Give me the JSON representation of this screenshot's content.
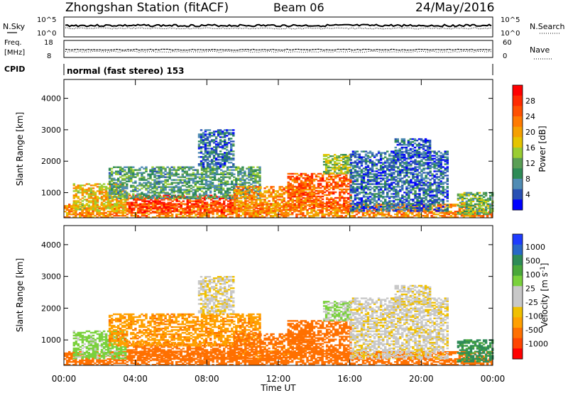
{
  "header": {
    "station": "Zhongshan Station (fitACF)",
    "beam": "Beam 06",
    "date": "24/May/2016"
  },
  "summary_panels": {
    "nsky": {
      "label": "N.Sky",
      "ticks": [
        "10^5",
        "10^0"
      ]
    },
    "nsearch": {
      "label": "N.Search",
      "ticks": [
        "10^5",
        "10^0"
      ]
    },
    "freq": {
      "label_top": "Freq.",
      "label_bottom": "[MHz]",
      "ticks": [
        "18",
        "8"
      ]
    },
    "nave": {
      "label": "Nave",
      "ticks": [
        "60",
        "0"
      ]
    },
    "cpid": {
      "label": "CPID",
      "value": "normal (fast stereo) 153"
    }
  },
  "chart_data": [
    {
      "type": "heatmap",
      "title": "",
      "xlabel": "Time UT",
      "ylabel": "Slant Range [km]",
      "x_tick_labels": [
        "00:00",
        "04:00",
        "08:00",
        "12:00",
        "16:00",
        "20:00",
        "00:00"
      ],
      "x_ticks_hours": [
        0,
        4,
        8,
        12,
        16,
        20,
        24
      ],
      "xlim_hours": [
        0,
        24
      ],
      "y_ticks": [
        1000,
        2000,
        3000,
        4000
      ],
      "ylim": [
        200,
        4600
      ],
      "colorbar": {
        "label": "Power [dB]",
        "ticks": [
          4,
          8,
          12,
          16,
          20,
          24,
          28
        ],
        "range": [
          0,
          32
        ],
        "colors": [
          "#0000ff",
          "#2850b4",
          "#508cb4",
          "#2e8b57",
          "#5a9f55",
          "#9acd32",
          "#e5c400",
          "#f5a000",
          "#ff7a00",
          "#ff5000",
          "#ff2a00",
          "#ff0000"
        ]
      },
      "echo_regions": [
        {
          "t0": 0.0,
          "t1": 24.0,
          "r0": 200,
          "r1": 650,
          "value": 22
        },
        {
          "t0": 0.5,
          "t1": 3.5,
          "r0": 400,
          "r1": 1300,
          "value": 18
        },
        {
          "t0": 3.5,
          "t1": 9.5,
          "r0": 350,
          "r1": 900,
          "value": 27
        },
        {
          "t0": 2.5,
          "t1": 11.0,
          "r0": 800,
          "r1": 1800,
          "value": 10
        },
        {
          "t0": 7.5,
          "t1": 9.5,
          "r0": 1800,
          "r1": 3000,
          "value": 6
        },
        {
          "t0": 9.5,
          "t1": 14.0,
          "r0": 400,
          "r1": 1200,
          "value": 22
        },
        {
          "t0": 12.5,
          "t1": 16.0,
          "r0": 500,
          "r1": 1600,
          "value": 25
        },
        {
          "t0": 14.5,
          "t1": 16.0,
          "r0": 1600,
          "r1": 2200,
          "value": 14
        },
        {
          "t0": 16.0,
          "t1": 21.5,
          "r0": 400,
          "r1": 2300,
          "value": 6
        },
        {
          "t0": 18.5,
          "t1": 20.5,
          "r0": 2100,
          "r1": 2700,
          "value": 5
        },
        {
          "t0": 22.0,
          "t1": 24.0,
          "r0": 300,
          "r1": 1000,
          "value": 12
        }
      ]
    },
    {
      "type": "heatmap",
      "title": "",
      "xlabel": "Time UT",
      "ylabel": "Slant Range [km]",
      "x_tick_labels": [
        "00:00",
        "04:00",
        "08:00",
        "12:00",
        "16:00",
        "20:00",
        "00:00"
      ],
      "x_ticks_hours": [
        0,
        4,
        8,
        12,
        16,
        20,
        24
      ],
      "xlim_hours": [
        0,
        24
      ],
      "y_ticks": [
        1000,
        2000,
        3000,
        4000
      ],
      "ylim": [
        200,
        4600
      ],
      "colorbar": {
        "label": "Velocity [m s^-1]",
        "ticks": [
          "1000",
          "500",
          "100",
          "25",
          "-25",
          "-100",
          "-500",
          "-1000"
        ],
        "colors": [
          "#1e3cff",
          "#2868c8",
          "#2e8b57",
          "#4aa83a",
          "#7ad13c",
          "#c8c8c8",
          "#c8c8c8",
          "#f0c000",
          "#ffa000",
          "#ff7000",
          "#ff4500",
          "#ff0000"
        ]
      },
      "echo_regions": [
        {
          "t0": 0.0,
          "t1": 24.0,
          "r0": 200,
          "r1": 650,
          "value": -200
        },
        {
          "t0": 0.5,
          "t1": 3.5,
          "r0": 400,
          "r1": 1300,
          "value": 60
        },
        {
          "t0": 3.5,
          "t1": 9.5,
          "r0": 350,
          "r1": 900,
          "value": -300
        },
        {
          "t0": 2.5,
          "t1": 11.0,
          "r0": 800,
          "r1": 1800,
          "value": -80
        },
        {
          "t0": 7.5,
          "t1": 9.5,
          "r0": 1800,
          "r1": 3000,
          "value": 0
        },
        {
          "t0": 9.5,
          "t1": 14.0,
          "r0": 400,
          "r1": 1200,
          "value": -150
        },
        {
          "t0": 12.5,
          "t1": 16.0,
          "r0": 500,
          "r1": 1600,
          "value": -250
        },
        {
          "t0": 14.5,
          "t1": 16.0,
          "r0": 1600,
          "r1": 2200,
          "value": 40
        },
        {
          "t0": 16.0,
          "t1": 21.5,
          "r0": 400,
          "r1": 2300,
          "value": 5
        },
        {
          "t0": 18.5,
          "t1": 20.5,
          "r0": 2100,
          "r1": 2700,
          "value": 0
        },
        {
          "t0": 22.0,
          "t1": 24.0,
          "r0": 300,
          "r1": 1000,
          "value": 300
        }
      ]
    }
  ]
}
